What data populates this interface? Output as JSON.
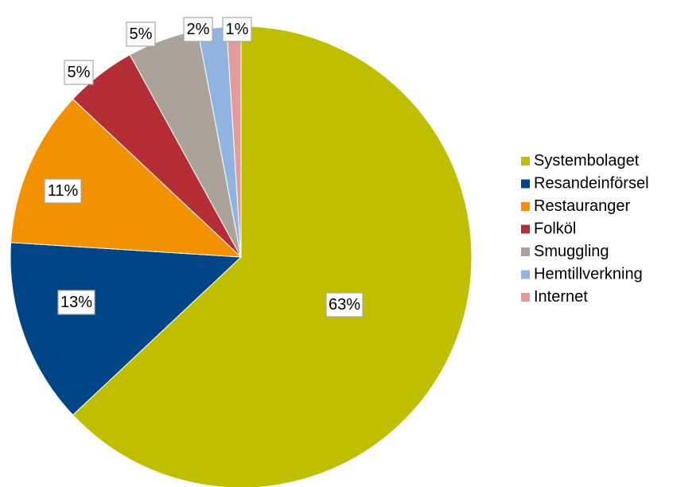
{
  "chart_data": {
    "type": "pie",
    "title": "",
    "legend_position": "right",
    "start_angle": "12 o'clock, clockwise",
    "slices": [
      {
        "name": "Systembolaget",
        "value": 63,
        "label": "63%",
        "color": "#bfbf00"
      },
      {
        "name": "Resandeinförsel",
        "value": 13,
        "label": "13%",
        "color": "#004586"
      },
      {
        "name": "Restauranger",
        "value": 11,
        "label": "11%",
        "color": "#f39200"
      },
      {
        "name": "Folköl",
        "value": 5,
        "label": "5%",
        "color": "#b52d35"
      },
      {
        "name": "Smuggling",
        "value": 5,
        "label": "5%",
        "color": "#aba399"
      },
      {
        "name": "Hemtillverkning",
        "value": 2,
        "label": "2%",
        "color": "#8fb4e0"
      },
      {
        "name": "Internet",
        "value": 1,
        "label": "1%",
        "color": "#e39a9a"
      }
    ]
  }
}
